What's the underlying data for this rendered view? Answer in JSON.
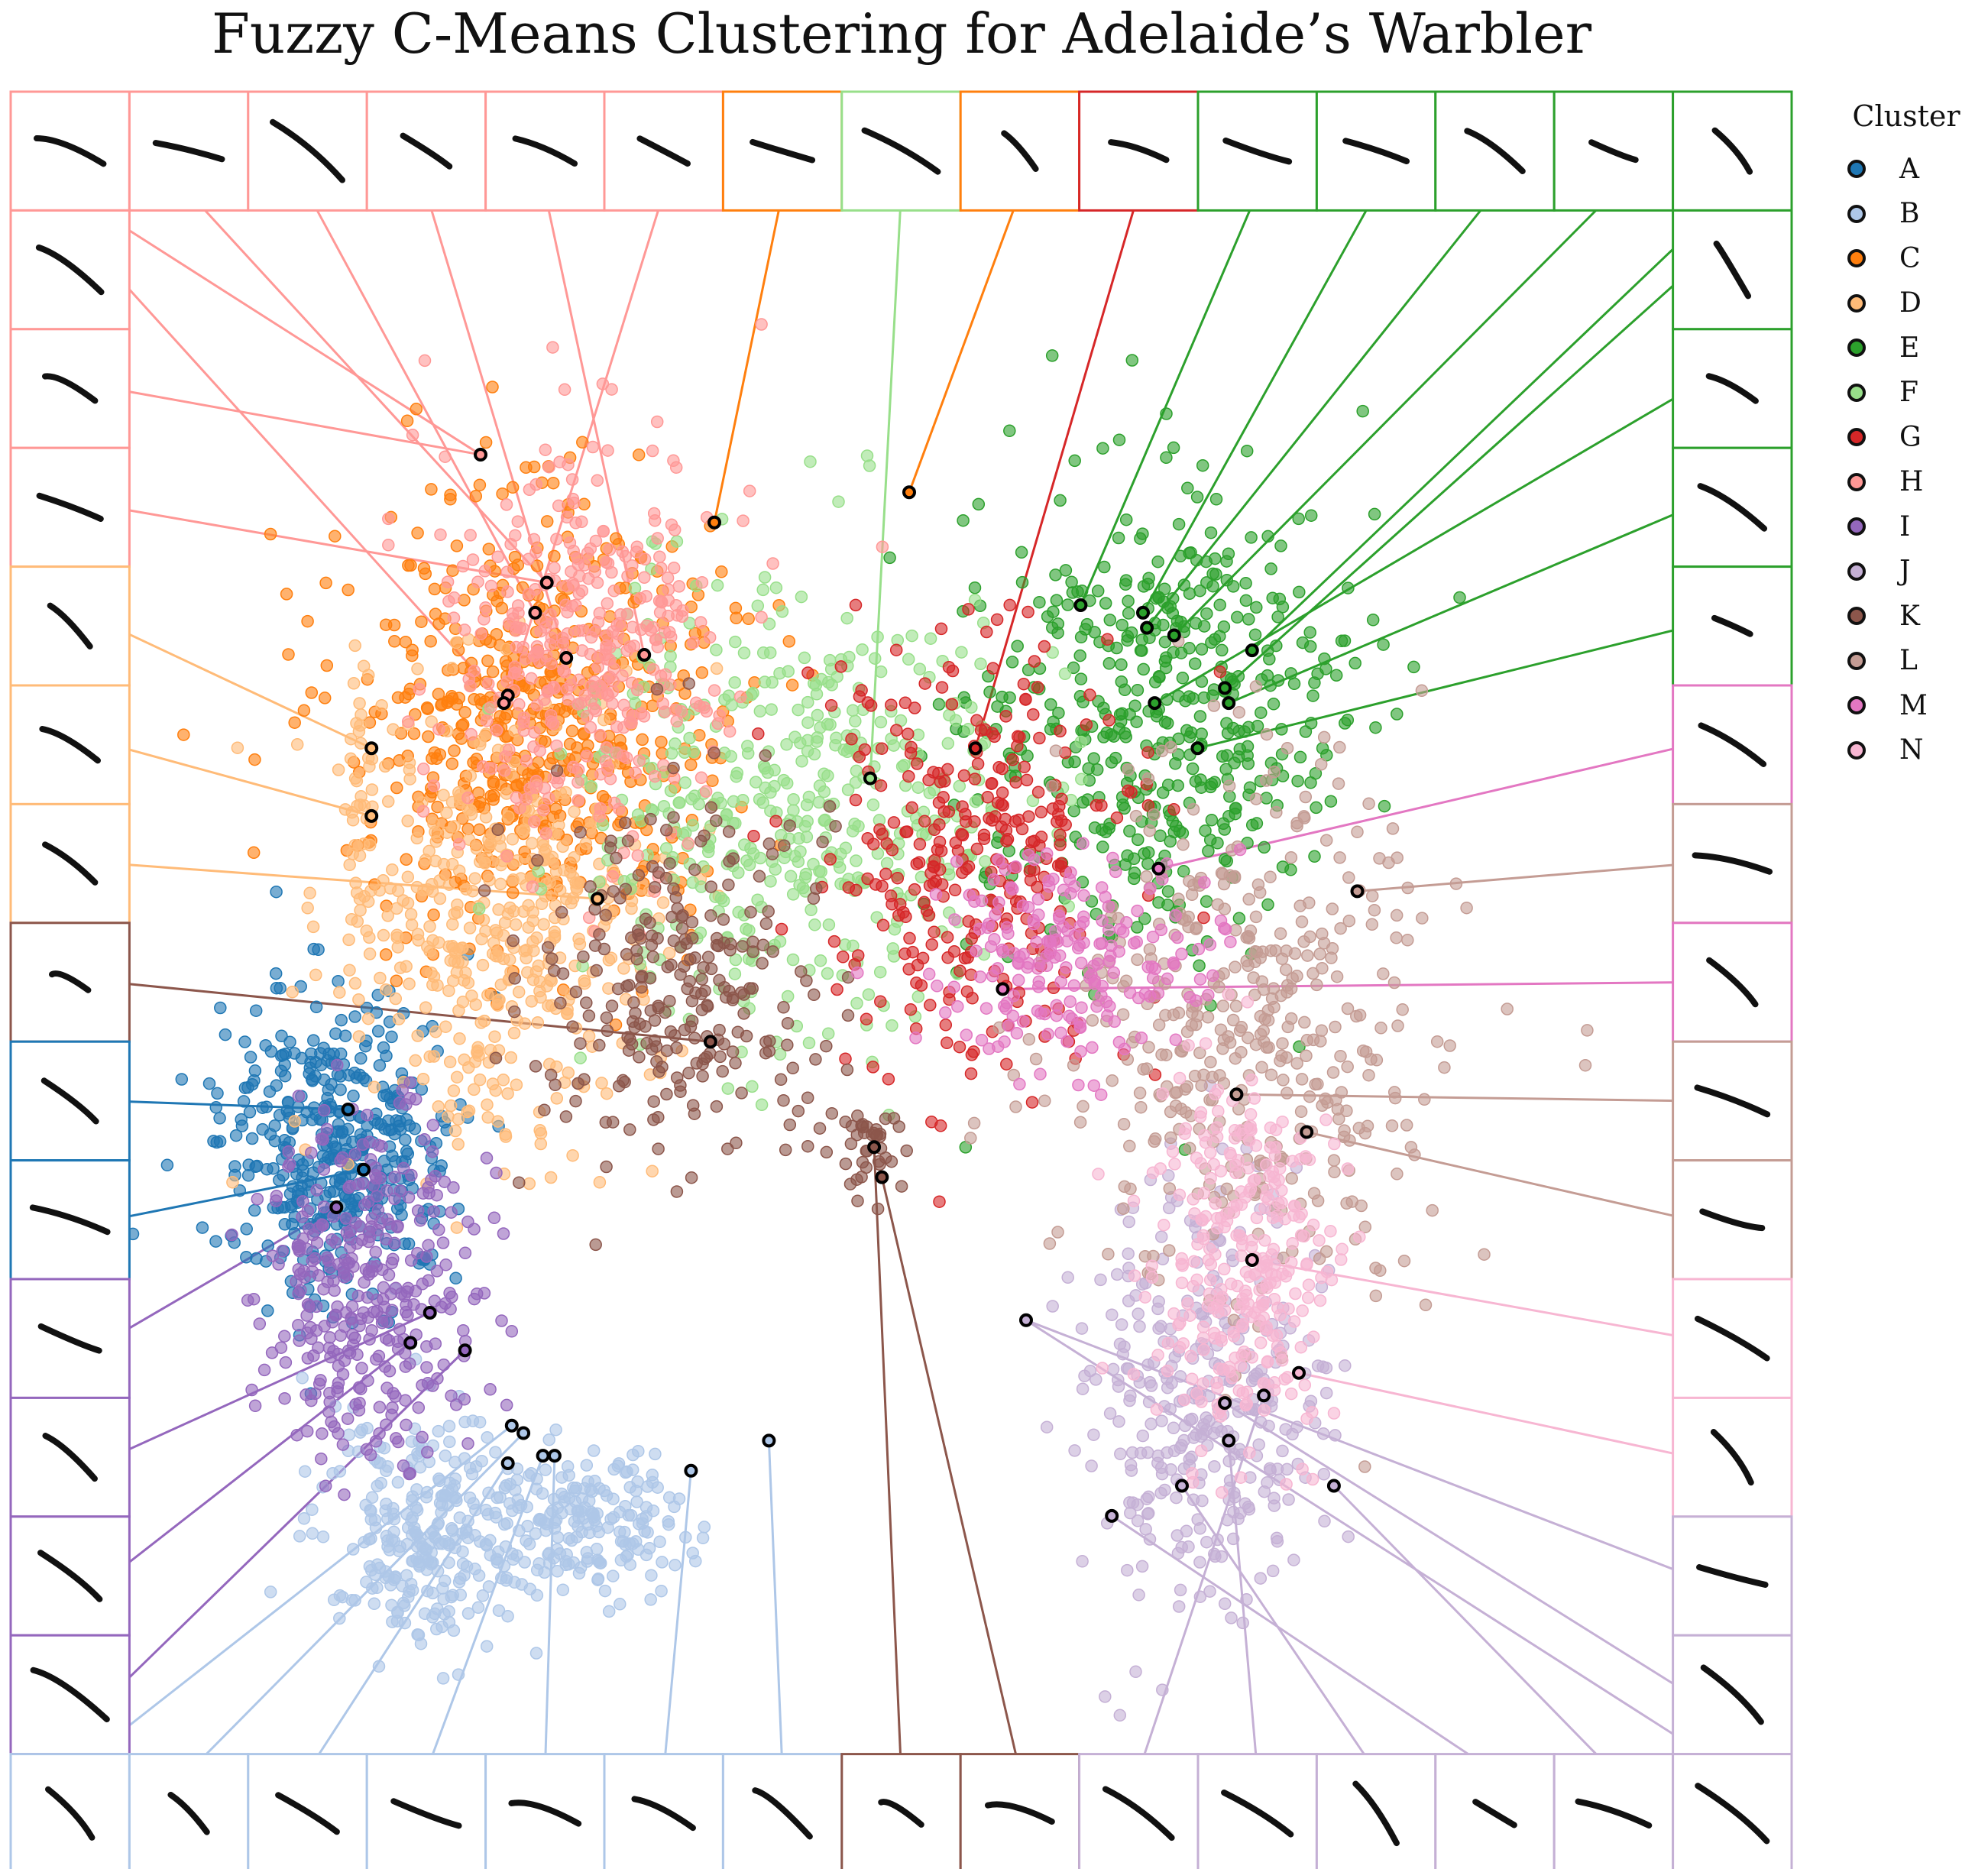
{
  "title": "Fuzzy C-Means Clustering for Adelaide’s Warbler",
  "legend": {
    "title": "Cluster",
    "items": [
      {
        "label": "A",
        "color": "#1f77b4"
      },
      {
        "label": "B",
        "color": "#aec7e8"
      },
      {
        "label": "C",
        "color": "#ff7f0e"
      },
      {
        "label": "D",
        "color": "#ffbb78"
      },
      {
        "label": "E",
        "color": "#2ca02c"
      },
      {
        "label": "F",
        "color": "#98df8a"
      },
      {
        "label": "G",
        "color": "#d62728"
      },
      {
        "label": "H",
        "color": "#ff9896"
      },
      {
        "label": "I",
        "color": "#9467bd"
      },
      {
        "label": "J",
        "color": "#c5b0d5"
      },
      {
        "label": "K",
        "color": "#8c564b"
      },
      {
        "label": "L",
        "color": "#c49c94"
      },
      {
        "label": "M",
        "color": "#e377c2"
      },
      {
        "label": "N",
        "color": "#f7b6d2"
      }
    ]
  },
  "chart_data": {
    "type": "scatter",
    "title": "Fuzzy C-Means Clustering for Adelaide’s Warbler",
    "xlabel": "",
    "ylabel": "",
    "grid": false,
    "axes_visible": false,
    "legend_placement": "right",
    "series": [
      {
        "name": "A",
        "color": "#1f77b4",
        "regions": [
          {
            "center": [
              0.265,
              0.625
            ],
            "spread": [
              0.075,
              0.05
            ],
            "n": 420
          }
        ],
        "highlighted": [
          [
            0.28,
            0.6
          ],
          [
            0.3,
            0.64
          ]
        ]
      },
      {
        "name": "B",
        "color": "#aec7e8",
        "regions": [
          {
            "center": [
              0.38,
              0.88
            ],
            "spread": [
              0.07,
              0.04
            ],
            "n": 260
          },
          {
            "center": [
              0.57,
              0.875
            ],
            "spread": [
              0.07,
              0.025
            ],
            "n": 200
          }
        ],
        "highlighted": [
          [
            0.49,
            0.81
          ],
          [
            0.505,
            0.815
          ],
          [
            0.485,
            0.835
          ],
          [
            0.53,
            0.83
          ],
          [
            0.545,
            0.83
          ],
          [
            0.72,
            0.84
          ],
          [
            0.82,
            0.82
          ]
        ]
      },
      {
        "name": "C",
        "color": "#ff7f0e",
        "regions": [
          {
            "center": [
              0.52,
              0.34
            ],
            "spread": [
              0.12,
              0.07
            ],
            "n": 560
          }
        ],
        "highlighted": [
          [
            0.75,
            0.21
          ],
          [
            1.0,
            0.19
          ]
        ]
      },
      {
        "name": "D",
        "color": "#ffbb78",
        "regions": [
          {
            "center": [
              0.47,
              0.48
            ],
            "spread": [
              0.1,
              0.08
            ],
            "n": 440
          },
          {
            "center": [
              0.295,
              0.4
            ],
            "spread": [
              0.01,
              0.04
            ],
            "n": 30
          }
        ],
        "highlighted": [
          [
            0.31,
            0.36
          ],
          [
            0.31,
            0.405
          ],
          [
            0.6,
            0.46
          ]
        ]
      },
      {
        "name": "E",
        "color": "#2ca02c",
        "regions": [
          {
            "center": [
              1.31,
              0.34
            ],
            "spread": [
              0.12,
              0.08
            ],
            "n": 470
          }
        ],
        "highlighted": [
          [
            1.22,
            0.265
          ],
          [
            1.3,
            0.27
          ],
          [
            1.305,
            0.28
          ],
          [
            1.34,
            0.285
          ],
          [
            1.44,
            0.295
          ],
          [
            1.405,
            0.32
          ],
          [
            1.315,
            0.33
          ],
          [
            1.41,
            0.33
          ],
          [
            1.37,
            0.36
          ]
        ]
      },
      {
        "name": "F",
        "color": "#98df8a",
        "regions": [
          {
            "center": [
              0.86,
              0.4
            ],
            "spread": [
              0.14,
              0.075
            ],
            "n": 460
          }
        ],
        "highlighted": [
          [
            0.95,
            0.38
          ]
        ]
      },
      {
        "name": "G",
        "color": "#d62728",
        "regions": [
          {
            "center": [
              1.08,
              0.43
            ],
            "spread": [
              0.1,
              0.07
            ],
            "n": 310
          }
        ],
        "highlighted": [
          [
            1.085,
            0.36
          ]
        ]
      },
      {
        "name": "H",
        "color": "#ff9896",
        "regions": [
          {
            "center": [
              0.58,
              0.29
            ],
            "spread": [
              0.09,
              0.07
            ],
            "n": 360
          }
        ],
        "highlighted": [
          [
            0.45,
            0.165
          ],
          [
            0.535,
            0.25
          ],
          [
            0.52,
            0.27
          ],
          [
            0.56,
            0.3
          ],
          [
            0.66,
            0.298
          ],
          [
            0.485,
            0.325
          ],
          [
            0.48,
            0.33
          ]
        ]
      },
      {
        "name": "I",
        "color": "#9467bd",
        "regions": [
          {
            "center": [
              0.31,
              0.72
            ],
            "spread": [
              0.07,
              0.055
            ],
            "n": 340
          }
        ],
        "highlighted": [
          [
            0.265,
            0.665
          ],
          [
            0.385,
            0.735
          ],
          [
            0.36,
            0.755
          ],
          [
            0.43,
            0.76
          ]
        ]
      },
      {
        "name": "J",
        "color": "#c5b0d5",
        "regions": [
          {
            "center": [
              1.37,
              0.79
            ],
            "spread": [
              0.08,
              0.07
            ],
            "n": 330
          }
        ],
        "highlighted": [
          [
            1.15,
            0.74
          ],
          [
            1.405,
            0.795
          ],
          [
            1.455,
            0.79
          ],
          [
            1.41,
            0.82
          ],
          [
            1.35,
            0.85
          ],
          [
            1.26,
            0.87
          ],
          [
            1.545,
            0.85
          ]
        ]
      },
      {
        "name": "K",
        "color": "#8c564b",
        "regions": [
          {
            "center": [
              0.71,
              0.52
            ],
            "spread": [
              0.1,
              0.06
            ],
            "n": 260
          },
          {
            "center": [
              0.95,
              0.625
            ],
            "spread": [
              0.03,
              0.015
            ],
            "n": 40
          }
        ],
        "highlighted": [
          [
            0.745,
            0.555
          ],
          [
            0.955,
            0.625
          ],
          [
            0.965,
            0.645
          ]
        ]
      },
      {
        "name": "L",
        "color": "#c49c94",
        "regions": [
          {
            "center": [
              1.44,
              0.54
            ],
            "spread": [
              0.12,
              0.09
            ],
            "n": 420
          }
        ],
        "highlighted": [
          [
            1.575,
            0.455
          ],
          [
            1.42,
            0.59
          ],
          [
            1.51,
            0.615
          ]
        ]
      },
      {
        "name": "M",
        "color": "#e377c2",
        "regions": [
          {
            "center": [
              1.21,
              0.5
            ],
            "spread": [
              0.09,
              0.035
            ],
            "n": 200
          }
        ],
        "highlighted": [
          [
            1.32,
            0.44
          ],
          [
            1.12,
            0.52
          ]
        ]
      },
      {
        "name": "N",
        "color": "#f7b6d2",
        "regions": [
          {
            "center": [
              1.43,
              0.7
            ],
            "spread": [
              0.06,
              0.06
            ],
            "n": 300
          }
        ],
        "highlighted": [
          [
            1.44,
            0.7
          ],
          [
            1.5,
            0.775
          ]
        ]
      }
    ],
    "thumbnails": {
      "top": [
        "H",
        "H",
        "H",
        "H",
        "H",
        "H",
        "C",
        "F",
        "C",
        "G",
        "E",
        "E",
        "E",
        "E",
        "E"
      ],
      "left": [
        "H",
        "H",
        "H",
        "D",
        "D",
        "D",
        "K",
        "A",
        "A",
        "I",
        "I",
        "I",
        "I"
      ],
      "right": [
        "E",
        "E",
        "E",
        "E",
        "M",
        "L",
        "M",
        "L",
        "L",
        "N",
        "N",
        "J",
        "J"
      ],
      "bottom": [
        "B",
        "B",
        "B",
        "B",
        "B",
        "B",
        "B",
        "K",
        "K",
        "J",
        "J",
        "J",
        "J",
        "J",
        "J"
      ]
    }
  }
}
